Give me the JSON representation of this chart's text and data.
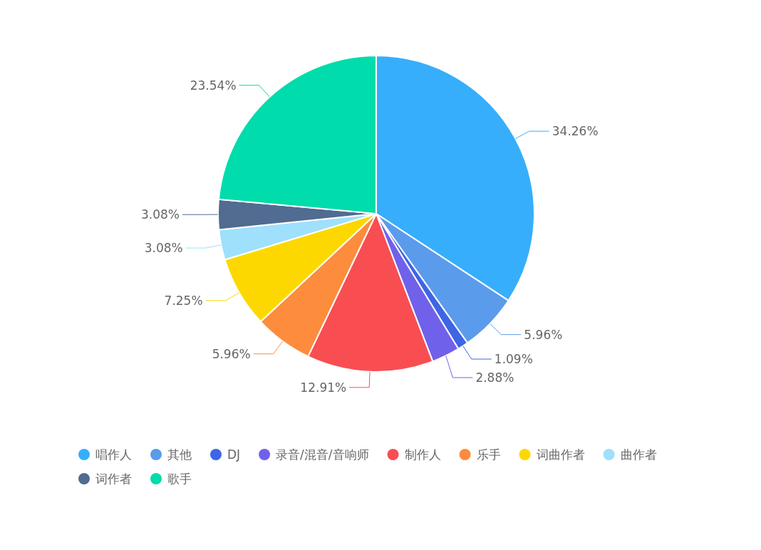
{
  "chart_data": {
    "type": "pie",
    "categories": [
      "唱作人",
      "其他",
      "DJ",
      "录音/混音/音响师",
      "制作人",
      "乐手",
      "词曲作者",
      "曲作者",
      "词作者",
      "歌手"
    ],
    "values": [
      34.26,
      5.96,
      1.09,
      2.88,
      12.91,
      5.96,
      7.25,
      3.08,
      3.08,
      23.54
    ],
    "value_labels": [
      "34.26%",
      "5.96%",
      "1.09%",
      "2.88%",
      "12.91%",
      "5.96%",
      "7.25%",
      "3.08%",
      "3.08%",
      "23.54%"
    ],
    "colors": [
      "#37aefb",
      "#5b9bec",
      "#3e65e6",
      "#7061ea",
      "#f84e52",
      "#fd8c3c",
      "#fdd800",
      "#9fe0fc",
      "#516b91",
      "#00dcab"
    ],
    "legend": "bottom"
  }
}
